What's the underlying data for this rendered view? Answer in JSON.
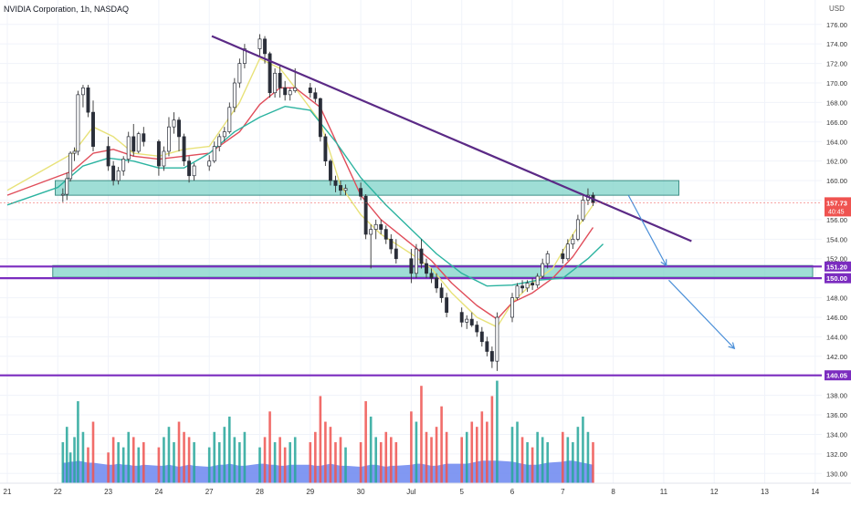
{
  "header": {
    "title": "NVIDIA Corporation, 1h, NASDAQ",
    "currency": "USD"
  },
  "colors": {
    "up": "#26a69a",
    "down": "#ef5350",
    "wick": "#26323d",
    "ema_fast": "#e8e27a",
    "ema_mid": "#e04d5a",
    "ema_slow": "#2bb3a0",
    "trendline": "#5b2a86",
    "level_line": "#7b2cbf",
    "zone_fill": "#7fd3c8",
    "zone_border": "#3f8f86",
    "arrow": "#4a8fd8",
    "volume_area": "#6b86f0",
    "price_label_bg": "#7b2cbf",
    "last_price_bg": "#ef5350"
  },
  "chart_data": {
    "type": "candlestick",
    "title": "NVIDIA Corporation, 1h, NASDAQ",
    "y_unit": "USD",
    "ylim": [
      129,
      178.5
    ],
    "y_ticks": [
      "130.00",
      "132.00",
      "134.00",
      "136.00",
      "138.00",
      "140.00",
      "142.00",
      "144.00",
      "146.00",
      "148.00",
      "150.00",
      "152.00",
      "154.00",
      "156.00",
      "158.00",
      "160.00",
      "162.00",
      "164.00",
      "166.00",
      "168.00",
      "170.00",
      "172.00",
      "174.00",
      "176.00"
    ],
    "x_ticks": [
      "21",
      "22",
      "23",
      "24",
      "27",
      "28",
      "29",
      "30",
      "Jul",
      "5",
      "6",
      "7",
      "8",
      "11",
      "12",
      "13",
      "14"
    ],
    "x_slots": 18,
    "candles": [
      [
        158.5,
        159.2,
        157.8,
        158.6
      ],
      [
        158.6,
        160.8,
        158.0,
        160.2
      ],
      [
        160.2,
        163.0,
        159.9,
        162.8
      ],
      [
        162.8,
        163.4,
        162.0,
        163.0
      ],
      [
        163.0,
        169.2,
        162.6,
        168.8
      ],
      [
        168.8,
        169.8,
        167.5,
        169.5
      ],
      [
        169.5,
        169.8,
        166.5,
        167.0
      ],
      [
        167.0,
        168.2,
        163.0,
        163.5
      ],
      [
        163.5,
        164.5,
        161.0,
        161.5
      ],
      [
        161.5,
        162.0,
        159.5,
        160.0
      ],
      [
        160.0,
        161.4,
        159.6,
        161.0
      ],
      [
        161.0,
        162.5,
        160.5,
        162.2
      ],
      [
        162.2,
        165.0,
        161.8,
        164.5
      ],
      [
        164.5,
        165.8,
        162.5,
        163.0
      ],
      [
        163.0,
        165.0,
        162.8,
        164.8
      ],
      [
        164.8,
        165.5,
        163.5,
        164.0
      ],
      [
        164.0,
        164.2,
        160.5,
        161.5
      ],
      [
        161.5,
        163.5,
        161.0,
        163.0
      ],
      [
        163.0,
        166.5,
        162.5,
        165.5
      ],
      [
        165.5,
        167.0,
        164.8,
        166.2
      ],
      [
        166.2,
        166.5,
        163.0,
        164.5
      ],
      [
        164.5,
        164.8,
        161.5,
        162.0
      ],
      [
        162.0,
        162.5,
        159.8,
        160.5
      ],
      [
        160.5,
        161.8,
        160.0,
        161.5
      ],
      [
        161.5,
        162.6,
        161.0,
        162.0
      ],
      [
        162.0,
        164.0,
        161.8,
        163.5
      ],
      [
        163.5,
        164.8,
        163.0,
        164.5
      ],
      [
        164.5,
        165.5,
        164.0,
        165.0
      ],
      [
        165.0,
        168.0,
        164.8,
        167.5
      ],
      [
        167.5,
        170.5,
        167.0,
        170.0
      ],
      [
        170.0,
        172.5,
        169.5,
        172.0
      ],
      [
        172.0,
        174.0,
        171.5,
        173.5
      ],
      [
        173.5,
        175.0,
        172.8,
        174.5
      ],
      [
        174.5,
        174.8,
        172.0,
        173.0
      ],
      [
        173.0,
        173.2,
        168.5,
        169.0
      ],
      [
        169.0,
        171.5,
        168.5,
        171.0
      ],
      [
        171.0,
        171.8,
        168.5,
        169.5
      ],
      [
        169.5,
        170.2,
        168.2,
        168.8
      ],
      [
        168.8,
        169.5,
        168.2,
        169.2
      ],
      [
        169.2,
        171.5,
        169.0,
        169.5
      ],
      [
        169.5,
        170.0,
        168.5,
        169.0
      ],
      [
        169.0,
        169.5,
        168.0,
        168.4
      ],
      [
        168.4,
        168.5,
        164.0,
        164.5
      ],
      [
        164.5,
        164.8,
        161.5,
        162.0
      ],
      [
        162.0,
        162.2,
        159.5,
        160.0
      ],
      [
        160.0,
        160.5,
        158.8,
        159.5
      ],
      [
        159.5,
        160.0,
        158.5,
        159.0
      ],
      [
        159.0,
        159.6,
        158.5,
        159.2
      ],
      [
        159.2,
        159.8,
        158.0,
        158.4
      ],
      [
        158.4,
        158.6,
        154.0,
        154.5
      ],
      [
        154.5,
        155.5,
        151.0,
        155.0
      ],
      [
        155.0,
        156.0,
        154.0,
        155.5
      ],
      [
        155.5,
        156.0,
        154.5,
        155.0
      ],
      [
        155.0,
        155.4,
        153.5,
        154.0
      ],
      [
        154.0,
        154.5,
        152.5,
        153.0
      ],
      [
        153.0,
        154.0,
        151.5,
        152.0
      ],
      [
        152.0,
        153.0,
        149.5,
        150.5
      ],
      [
        150.5,
        153.5,
        150.0,
        153.0
      ],
      [
        153.0,
        154.0,
        151.0,
        151.5
      ],
      [
        151.5,
        152.0,
        150.0,
        150.5
      ],
      [
        150.5,
        151.0,
        149.5,
        150.0
      ],
      [
        150.0,
        150.5,
        148.5,
        149.0
      ],
      [
        149.0,
        149.5,
        147.5,
        148.0
      ],
      [
        148.0,
        148.5,
        146.0,
        146.5
      ],
      [
        146.5,
        147.0,
        145.0,
        145.5
      ],
      [
        145.5,
        146.2,
        144.8,
        145.8
      ],
      [
        145.8,
        146.5,
        145.0,
        145.2
      ],
      [
        145.2,
        145.6,
        144.0,
        144.5
      ],
      [
        144.5,
        145.0,
        143.0,
        143.5
      ],
      [
        143.5,
        144.0,
        142.0,
        142.5
      ],
      [
        142.5,
        143.0,
        140.8,
        141.5
      ],
      [
        141.5,
        146.5,
        140.5,
        146.0
      ],
      [
        146.0,
        148.5,
        145.5,
        148.0
      ],
      [
        148.0,
        149.5,
        147.8,
        149.2
      ],
      [
        149.2,
        149.8,
        148.5,
        149.0
      ],
      [
        149.0,
        149.8,
        148.6,
        149.5
      ],
      [
        149.5,
        150.0,
        148.8,
        149.3
      ],
      [
        149.3,
        150.5,
        149.0,
        150.2
      ],
      [
        150.2,
        152.0,
        150.0,
        151.5
      ],
      [
        151.5,
        152.8,
        151.0,
        152.5
      ],
      [
        152.5,
        153.0,
        151.5,
        152.0
      ],
      [
        152.0,
        154.0,
        151.8,
        153.5
      ],
      [
        153.5,
        154.5,
        153.0,
        154.0
      ],
      [
        154.0,
        156.5,
        153.8,
        156.0
      ],
      [
        156.0,
        158.5,
        155.8,
        158.0
      ],
      [
        158.0,
        159.2,
        157.5,
        158.5
      ],
      [
        158.5,
        158.8,
        157.4,
        157.73
      ]
    ],
    "candle_slot": [
      1.1,
      1.18,
      1.25,
      1.33,
      1.4,
      1.5,
      1.6,
      1.7,
      2.0,
      2.1,
      2.2,
      2.3,
      2.4,
      2.5,
      2.6,
      2.7,
      3.0,
      3.1,
      3.2,
      3.3,
      3.4,
      3.5,
      3.6,
      3.7,
      4.0,
      4.1,
      4.2,
      4.3,
      4.4,
      4.5,
      4.6,
      4.7,
      5.0,
      5.1,
      5.2,
      5.3,
      5.4,
      5.5,
      5.6,
      5.7,
      6.0,
      6.1,
      6.2,
      6.3,
      6.4,
      6.5,
      6.6,
      6.7,
      7.0,
      7.1,
      7.2,
      7.3,
      7.4,
      7.5,
      7.6,
      7.7,
      8.0,
      8.1,
      8.2,
      8.3,
      8.4,
      8.5,
      8.6,
      8.7,
      9.0,
      9.1,
      9.2,
      9.3,
      9.4,
      9.5,
      9.6,
      9.7,
      10.0,
      10.1,
      10.2,
      10.3,
      10.4,
      10.5,
      10.6,
      10.7,
      11.0,
      11.1,
      11.2,
      11.3,
      11.4,
      11.5,
      11.6
    ],
    "volume_top_y": 139.5,
    "volume_base_y": 129.0,
    "volume_max": 100,
    "volumes": [
      40,
      55,
      30,
      45,
      80,
      50,
      35,
      60,
      30,
      45,
      40,
      35,
      50,
      45,
      35,
      40,
      35,
      45,
      55,
      40,
      60,
      50,
      45,
      40,
      35,
      50,
      40,
      55,
      65,
      45,
      40,
      50,
      35,
      45,
      70,
      40,
      45,
      35,
      40,
      45,
      40,
      50,
      85,
      60,
      55,
      40,
      45,
      35,
      40,
      80,
      65,
      45,
      40,
      50,
      45,
      40,
      70,
      60,
      95,
      50,
      45,
      55,
      75,
      50,
      45,
      50,
      60,
      55,
      70,
      60,
      85,
      100,
      55,
      60,
      45,
      40,
      35,
      50,
      45,
      40,
      50,
      45,
      40,
      55,
      65,
      50,
      40
    ],
    "volume_ma": [
      20,
      20,
      21,
      21,
      22,
      21,
      20,
      20,
      18,
      18,
      19,
      18,
      18,
      17,
      17,
      18,
      17,
      17,
      18,
      17,
      16,
      17,
      18,
      17,
      16,
      17,
      18,
      18,
      19,
      18,
      17,
      17,
      19,
      19,
      18,
      18,
      17,
      17,
      18,
      18,
      18,
      17,
      17,
      18,
      19,
      18,
      17,
      17,
      16,
      17,
      18,
      18,
      17,
      16,
      17,
      17,
      18,
      19,
      19,
      18,
      17,
      17,
      18,
      19,
      19,
      19,
      20,
      21,
      22,
      22,
      22,
      22,
      21,
      20,
      19,
      18,
      18,
      18,
      19,
      20,
      21,
      22,
      22,
      21,
      20,
      19,
      18
    ],
    "series": [
      {
        "kind": "ema_fast",
        "slots": [
          0,
          1.3,
          1.7,
          2.1,
          2.5,
          3.0,
          3.5,
          4.0,
          4.6,
          5.0,
          5.4,
          5.7,
          6.2,
          6.6,
          7.0,
          7.4,
          8.0,
          8.4,
          8.8,
          9.3,
          9.7,
          10.0,
          10.4,
          10.8,
          11.2,
          11.6
        ],
        "values": [
          159,
          162.8,
          165.5,
          164.5,
          162.8,
          162.5,
          163.2,
          163.5,
          168,
          172.5,
          171.5,
          169.5,
          166,
          159.5,
          156.5,
          154.5,
          152.5,
          151,
          148.5,
          146,
          145,
          147.5,
          149.5,
          151,
          154.5,
          157.5
        ]
      },
      {
        "kind": "ema_mid",
        "slots": [
          0,
          1.3,
          1.7,
          2.1,
          2.5,
          3.0,
          3.5,
          4.0,
          4.6,
          5.0,
          5.4,
          5.7,
          6.2,
          6.6,
          7.0,
          7.4,
          8.0,
          8.4,
          8.8,
          9.3,
          9.7,
          10.0,
          10.4,
          10.8,
          11.2,
          11.6
        ],
        "values": [
          158.5,
          161,
          162.8,
          163.2,
          162.5,
          162.2,
          162.5,
          162.8,
          165,
          167.8,
          169.5,
          169.5,
          167.5,
          163,
          158.5,
          156,
          153.5,
          151.8,
          149.5,
          147.2,
          145.8,
          147.5,
          148.5,
          150,
          152.2,
          155.2
        ]
      },
      {
        "kind": "ema_slow",
        "slots": [
          0,
          1.0,
          1.5,
          2.0,
          2.5,
          3.0,
          3.5,
          4.0,
          4.5,
          5.0,
          5.5,
          6.0,
          6.5,
          7.0,
          7.5,
          8.0,
          8.5,
          9.0,
          9.5,
          10.0,
          10.5,
          11.0,
          11.5,
          11.8
        ],
        "values": [
          157.5,
          159.3,
          161.5,
          162.3,
          162.0,
          161.3,
          161.3,
          162.8,
          165.0,
          166.5,
          167.6,
          167.2,
          164.0,
          160.3,
          157.5,
          155.0,
          152.5,
          150.5,
          149.2,
          149.3,
          149.8,
          150.0,
          152.0,
          153.5
        ]
      }
    ],
    "trendline": {
      "slots": [
        4.05,
        13.55
      ],
      "values": [
        174.8,
        153.8
      ]
    },
    "zones": [
      {
        "slots": [
          0.95,
          13.3
        ],
        "top": 160.0,
        "bottom": 158.5
      },
      {
        "slots": [
          0.9,
          15.95
        ],
        "top": 151.3,
        "bottom": 150.1
      }
    ],
    "levels": [
      151.2,
      150.0,
      140.05
    ],
    "level_labels": [
      "151.20",
      "150.00",
      "140.05"
    ],
    "arrows": [
      {
        "from": [
          12.3,
          158.5
        ],
        "to": [
          13.05,
          151.3
        ]
      },
      {
        "from": [
          13.1,
          149.8
        ],
        "to": [
          14.4,
          142.8
        ]
      }
    ],
    "last_price": {
      "value": 157.73,
      "label": "157.73",
      "countdown": "40:45"
    }
  }
}
